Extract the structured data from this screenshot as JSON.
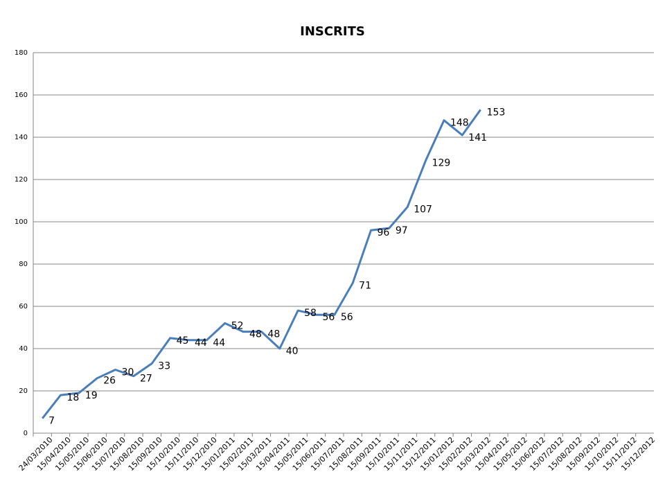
{
  "chart_data": {
    "type": "line",
    "title": "INSCRITS",
    "categories": [
      "24/03/2010",
      "15/04/2010",
      "15/05/2010",
      "15/06/2010",
      "15/07/2010",
      "15/08/2010",
      "15/09/2010",
      "15/10/2010",
      "15/11/2010",
      "15/12/2010",
      "15/01/2011",
      "15/02/2011",
      "15/03/2011",
      "15/04/2011",
      "15/05/2011",
      "15/06/2011",
      "15/07/2011",
      "15/08/2011",
      "15/09/2011",
      "15/10/2011",
      "15/11/2011",
      "15/12/2011",
      "15/01/2012",
      "15/02/2012",
      "15/03/2012",
      "15/04/2012",
      "15/05/2012",
      "15/06/2012",
      "15/07/2012",
      "15/08/2012",
      "15/09/2012",
      "15/10/2012",
      "15/11/2012",
      "15/12/2012"
    ],
    "values": [
      7,
      18,
      19,
      26,
      30,
      27,
      33,
      45,
      44,
      44,
      52,
      48,
      48,
      40,
      58,
      56,
      56,
      71,
      96,
      97,
      107,
      129,
      148,
      141,
      153,
      null,
      null,
      null,
      null,
      null,
      null,
      null,
      null,
      null
    ],
    "color": "#4a7ebb",
    "ylim": [
      0,
      180
    ],
    "yticks": [
      0,
      20,
      40,
      60,
      80,
      100,
      120,
      140,
      160,
      180
    ],
    "grid": true
  }
}
